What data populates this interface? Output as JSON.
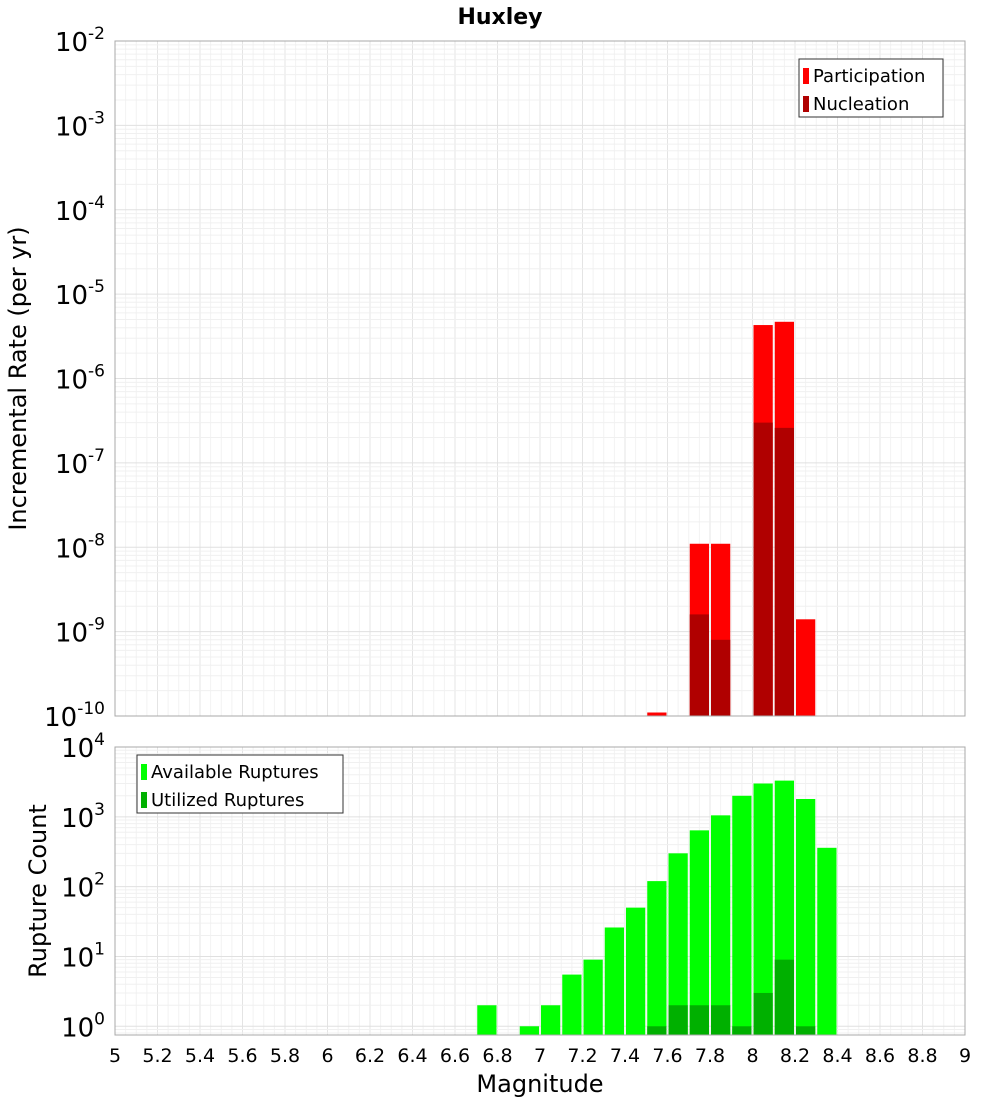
{
  "chart_data": [
    {
      "type": "bar",
      "title": "Huxley",
      "xlabel": "",
      "ylabel": "Incremental Rate (per yr)",
      "yscale": "log",
      "ylim": [
        1e-10,
        0.01
      ],
      "xlim": [
        5,
        9
      ],
      "legend_position": "top-right",
      "ytick_labels": [
        {
          "base": "10",
          "exp": "-10"
        },
        {
          "base": "10",
          "exp": "-9"
        },
        {
          "base": "10",
          "exp": "-8"
        },
        {
          "base": "10",
          "exp": "-7"
        },
        {
          "base": "10",
          "exp": "-6"
        },
        {
          "base": "10",
          "exp": "-5"
        },
        {
          "base": "10",
          "exp": "-4"
        },
        {
          "base": "10",
          "exp": "-3"
        },
        {
          "base": "10",
          "exp": "-2"
        }
      ],
      "series": [
        {
          "name": "Participation",
          "color": "#ff0000",
          "points": [
            {
              "x": 7.55,
              "y": 1.1e-10
            },
            {
              "x": 7.75,
              "y": 1.1e-08
            },
            {
              "x": 7.85,
              "y": 1.1e-08
            },
            {
              "x": 8.05,
              "y": 4.3e-06
            },
            {
              "x": 8.15,
              "y": 4.7e-06
            },
            {
              "x": 8.25,
              "y": 1.4e-09
            }
          ]
        },
        {
          "name": "Nucleation",
          "color": "#b00000",
          "points": [
            {
              "x": 7.75,
              "y": 1.6e-09
            },
            {
              "x": 7.85,
              "y": 8e-10
            },
            {
              "x": 8.05,
              "y": 3e-07
            },
            {
              "x": 8.15,
              "y": 2.6e-07
            }
          ]
        }
      ]
    },
    {
      "type": "bar",
      "title": "",
      "xlabel": "Magnitude",
      "ylabel": "Rupture Count",
      "yscale": "log",
      "ylim": [
        0.75,
        10000
      ],
      "xlim": [
        5,
        9
      ],
      "legend_position": "top-left",
      "ytick_labels": [
        {
          "base": "10",
          "exp": "0"
        },
        {
          "base": "10",
          "exp": "1"
        },
        {
          "base": "10",
          "exp": "2"
        },
        {
          "base": "10",
          "exp": "3"
        },
        {
          "base": "10",
          "exp": "4"
        }
      ],
      "xtick_labels": [
        "5",
        "5.2",
        "5.4",
        "5.6",
        "5.8",
        "6",
        "6.2",
        "6.4",
        "6.6",
        "6.8",
        "7",
        "7.2",
        "7.4",
        "7.6",
        "7.8",
        "8",
        "8.2",
        "8.4",
        "8.6",
        "8.8",
        "9"
      ],
      "series": [
        {
          "name": "Available Ruptures",
          "color": "#00ff00",
          "points": [
            {
              "x": 6.75,
              "y": 2
            },
            {
              "x": 6.95,
              "y": 1
            },
            {
              "x": 7.05,
              "y": 2
            },
            {
              "x": 7.15,
              "y": 5.5
            },
            {
              "x": 7.25,
              "y": 9
            },
            {
              "x": 7.35,
              "y": 26
            },
            {
              "x": 7.45,
              "y": 50
            },
            {
              "x": 7.55,
              "y": 120
            },
            {
              "x": 7.65,
              "y": 300
            },
            {
              "x": 7.75,
              "y": 640
            },
            {
              "x": 7.85,
              "y": 1050
            },
            {
              "x": 7.95,
              "y": 2000
            },
            {
              "x": 8.05,
              "y": 3000
            },
            {
              "x": 8.15,
              "y": 3300
            },
            {
              "x": 8.25,
              "y": 1800
            },
            {
              "x": 8.35,
              "y": 360
            }
          ]
        },
        {
          "name": "Utilized Ruptures",
          "color": "#00b000",
          "points": [
            {
              "x": 7.55,
              "y": 1
            },
            {
              "x": 7.65,
              "y": 2
            },
            {
              "x": 7.75,
              "y": 2
            },
            {
              "x": 7.85,
              "y": 2
            },
            {
              "x": 7.95,
              "y": 1
            },
            {
              "x": 8.05,
              "y": 3
            },
            {
              "x": 8.15,
              "y": 9
            },
            {
              "x": 8.25,
              "y": 1
            }
          ]
        }
      ]
    }
  ]
}
